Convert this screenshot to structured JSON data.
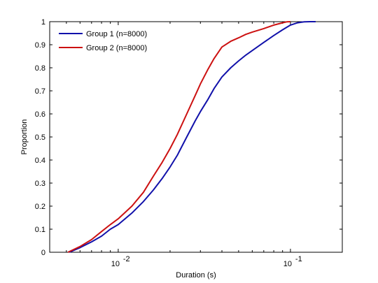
{
  "chart_data": {
    "type": "line",
    "title": "",
    "xlabel": "Duration (s)",
    "ylabel": "Proportion",
    "xscale": "log",
    "xlim": [
      0.004,
      0.2
    ],
    "ylim": [
      0,
      1
    ],
    "grid": false,
    "legend_position": "top-left",
    "x_ticks": [
      {
        "value": 0.01,
        "base": "10",
        "exp": "-2"
      },
      {
        "value": 0.1,
        "base": "10",
        "exp": "-1"
      }
    ],
    "y_ticks": [
      "0",
      "0.1",
      "0.2",
      "0.3",
      "0.4",
      "0.5",
      "0.6",
      "0.7",
      "0.8",
      "0.9",
      "1"
    ],
    "series": [
      {
        "name": "Group 1 (n=8000)",
        "color": "#1111aa",
        "x": [
          0.0052,
          0.006,
          0.007,
          0.008,
          0.009,
          0.01,
          0.012,
          0.014,
          0.016,
          0.018,
          0.02,
          0.022,
          0.025,
          0.028,
          0.03,
          0.033,
          0.036,
          0.04,
          0.045,
          0.05,
          0.055,
          0.06,
          0.07,
          0.08,
          0.09,
          0.1,
          0.11,
          0.12,
          0.13,
          0.14
        ],
        "y": [
          0,
          0.02,
          0.045,
          0.07,
          0.1,
          0.12,
          0.17,
          0.22,
          0.27,
          0.32,
          0.37,
          0.42,
          0.5,
          0.57,
          0.61,
          0.66,
          0.71,
          0.76,
          0.8,
          0.83,
          0.855,
          0.875,
          0.91,
          0.94,
          0.965,
          0.985,
          0.995,
          0.999,
          1,
          1
        ]
      },
      {
        "name": "Group 2 (n=8000)",
        "color": "#cc1111",
        "x": [
          0.0051,
          0.006,
          0.007,
          0.008,
          0.009,
          0.01,
          0.012,
          0.014,
          0.016,
          0.018,
          0.02,
          0.022,
          0.025,
          0.028,
          0.03,
          0.033,
          0.036,
          0.04,
          0.045,
          0.05,
          0.055,
          0.06,
          0.07,
          0.08,
          0.09,
          0.095,
          0.1
        ],
        "y": [
          0,
          0.025,
          0.055,
          0.09,
          0.12,
          0.145,
          0.2,
          0.26,
          0.33,
          0.39,
          0.45,
          0.51,
          0.6,
          0.68,
          0.73,
          0.79,
          0.84,
          0.89,
          0.915,
          0.93,
          0.945,
          0.955,
          0.97,
          0.985,
          0.995,
          0.999,
          1
        ]
      }
    ]
  }
}
